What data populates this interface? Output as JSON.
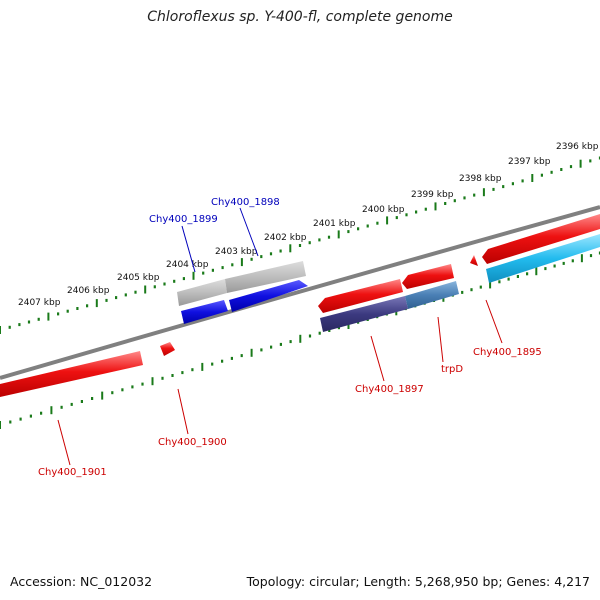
{
  "title": "Chloroflexus sp. Y-400-fl, complete genome",
  "accession": "Accession: NC_012032",
  "topology": "Topology: circular; Length: 5,268,950 bp; Genes: 4,217",
  "colors": {
    "backbone": "#808080",
    "tick": "#1a7a1a",
    "forward_cds": "#ee1111",
    "reverse_cds_blue": "#1010e0",
    "reverse_cds_navy": "#3c3a80",
    "reverse_cds_steel": "#4a7fb5",
    "reverse_cds_cyan": "#22bbee",
    "other_feature": "#bbbbbb",
    "label_forward": "#cc0000",
    "label_reverse": "#0000bb"
  },
  "kbp_labels": [
    "2396 kbp",
    "2397 kbp",
    "2398 kbp",
    "2399 kbp",
    "2400 kbp",
    "2401 kbp",
    "2402 kbp",
    "2403 kbp",
    "2404 kbp",
    "2405 kbp",
    "2406 kbp",
    "2407 kbp"
  ],
  "gene_labels": {
    "chy1898": "Chy400_1898",
    "chy1899": "Chy400_1899",
    "chy1901": "Chy400_1901",
    "chy1900": "Chy400_1900",
    "chy1897": "Chy400_1897",
    "trpd": "trpD",
    "chy1895": "Chy400_1895"
  }
}
